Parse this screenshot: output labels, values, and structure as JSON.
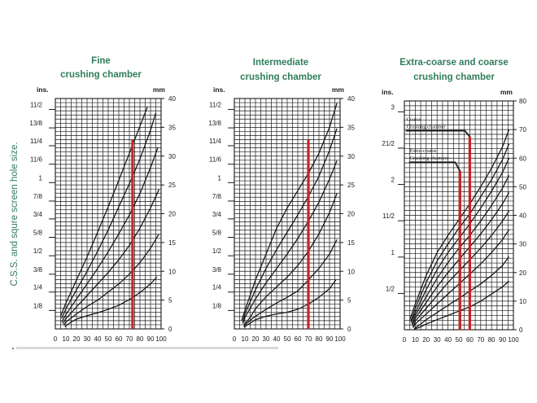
{
  "colors": {
    "heading": "#2f7d5c",
    "side_label": "#2f7d5c",
    "ink": "#1a1a1a",
    "marker": "#cc2222"
  },
  "side_label": "C.S.S. and squre screen hole size.",
  "chart_data": [
    {
      "type": "line",
      "title_lines": [
        "Fine",
        "crushing chamber"
      ],
      "left_unit": "ins.",
      "right_unit": "mm",
      "left_ticks": [
        "1/8",
        "1/4",
        "3/8",
        "1/2",
        "5/8",
        "3/4",
        "7/8",
        "1",
        "11/6",
        "11/4",
        "13/8",
        "11/2"
      ],
      "left_tick_mm": [
        3.2,
        6.4,
        9.5,
        12.7,
        15.9,
        19.1,
        22.2,
        25.4,
        28.6,
        31.8,
        34.9,
        38.1
      ],
      "ylim": [
        0,
        40
      ],
      "right_ticks": [
        0,
        5,
        10,
        15,
        20,
        25,
        30,
        35,
        40
      ],
      "xlim": [
        0,
        100
      ],
      "x_ticks": [
        0,
        10,
        20,
        30,
        40,
        50,
        60,
        70,
        80,
        90,
        100
      ],
      "curves": [
        [
          [
            5,
            2.2
          ],
          [
            10,
            4.5
          ],
          [
            20,
            8.5
          ],
          [
            30,
            12.5
          ],
          [
            40,
            16.8
          ],
          [
            50,
            21.2
          ],
          [
            60,
            25.8
          ],
          [
            70,
            30.5
          ],
          [
            80,
            35.2
          ],
          [
            87,
            38.5
          ]
        ],
        [
          [
            6,
            1.8
          ],
          [
            10,
            3.5
          ],
          [
            20,
            6.8
          ],
          [
            30,
            10.0
          ],
          [
            40,
            13.5
          ],
          [
            50,
            17.2
          ],
          [
            60,
            21.2
          ],
          [
            70,
            25.2
          ],
          [
            80,
            29.5
          ],
          [
            90,
            34.5
          ],
          [
            95,
            37.5
          ]
        ],
        [
          [
            6,
            1.2
          ],
          [
            10,
            2.5
          ],
          [
            20,
            5.2
          ],
          [
            30,
            7.8
          ],
          [
            40,
            10.5
          ],
          [
            50,
            13.4
          ],
          [
            60,
            16.5
          ],
          [
            70,
            19.8
          ],
          [
            80,
            23.5
          ],
          [
            90,
            28.0
          ],
          [
            97,
            31.5
          ]
        ],
        [
          [
            7,
            0.9
          ],
          [
            10,
            1.8
          ],
          [
            20,
            3.8
          ],
          [
            30,
            5.8
          ],
          [
            40,
            7.8
          ],
          [
            50,
            9.8
          ],
          [
            60,
            12.0
          ],
          [
            70,
            14.5
          ],
          [
            80,
            17.5
          ],
          [
            90,
            21.0
          ],
          [
            98,
            24.2
          ]
        ],
        [
          [
            8,
            0.6
          ],
          [
            10,
            1.2
          ],
          [
            20,
            2.6
          ],
          [
            30,
            3.9
          ],
          [
            40,
            5.0
          ],
          [
            50,
            6.4
          ],
          [
            60,
            7.8
          ],
          [
            70,
            9.5
          ],
          [
            80,
            11.5
          ],
          [
            90,
            14.0
          ],
          [
            98,
            16.5
          ]
        ],
        [
          [
            9,
            0.4
          ],
          [
            15,
            1.2
          ],
          [
            20,
            1.7
          ],
          [
            30,
            2.3
          ],
          [
            40,
            2.8
          ],
          [
            50,
            3.4
          ],
          [
            60,
            4.1
          ],
          [
            70,
            5.1
          ],
          [
            80,
            6.3
          ],
          [
            90,
            7.8
          ],
          [
            96,
            9.0
          ]
        ]
      ],
      "markers": [
        {
          "x": 73,
          "y0": 0,
          "y1": 32.8
        }
      ],
      "annotations": []
    },
    {
      "type": "line",
      "title_lines": [
        "Intermediate",
        "crushing chamber"
      ],
      "left_unit": "ins.",
      "right_unit": "mm",
      "left_ticks": [
        "1/8",
        "1/4",
        "3/8",
        "1/2",
        "5/8",
        "3/4",
        "7/8",
        "1",
        "11/6",
        "11/4",
        "13/8",
        "11/2"
      ],
      "left_tick_mm": [
        3.2,
        6.4,
        9.5,
        12.7,
        15.9,
        19.1,
        22.2,
        25.4,
        28.6,
        31.8,
        34.9,
        38.1
      ],
      "ylim": [
        0,
        40
      ],
      "right_ticks": [
        0,
        5,
        10,
        15,
        20,
        25,
        30,
        35,
        40
      ],
      "xlim": [
        0,
        100
      ],
      "x_ticks": [
        0,
        10,
        20,
        30,
        40,
        50,
        60,
        70,
        80,
        90,
        100
      ],
      "curves": [
        [
          [
            7,
            1.5
          ],
          [
            10,
            3.2
          ],
          [
            20,
            8.5
          ],
          [
            30,
            13.0
          ],
          [
            40,
            17.5
          ],
          [
            50,
            21.0
          ],
          [
            60,
            24.0
          ],
          [
            70,
            27.0
          ],
          [
            80,
            30.5
          ],
          [
            90,
            35.0
          ],
          [
            97,
            39.2
          ]
        ],
        [
          [
            8,
            1.2
          ],
          [
            10,
            2.6
          ],
          [
            20,
            6.8
          ],
          [
            30,
            10.5
          ],
          [
            40,
            13.8
          ],
          [
            50,
            16.8
          ],
          [
            60,
            19.8
          ],
          [
            70,
            23.0
          ],
          [
            80,
            26.5
          ],
          [
            90,
            31.0
          ],
          [
            97,
            34.8
          ]
        ],
        [
          [
            8,
            0.9
          ],
          [
            10,
            2.0
          ],
          [
            20,
            5.2
          ],
          [
            30,
            8.0
          ],
          [
            40,
            10.5
          ],
          [
            50,
            13.0
          ],
          [
            60,
            15.7
          ],
          [
            70,
            18.7
          ],
          [
            80,
            22.0
          ],
          [
            90,
            26.0
          ],
          [
            97,
            29.2
          ]
        ],
        [
          [
            9,
            0.7
          ],
          [
            15,
            2.0
          ],
          [
            20,
            3.5
          ],
          [
            30,
            5.6
          ],
          [
            40,
            7.3
          ],
          [
            50,
            9.0
          ],
          [
            60,
            11.0
          ],
          [
            70,
            13.5
          ],
          [
            80,
            16.5
          ],
          [
            90,
            20.2
          ],
          [
            97,
            23.5
          ]
        ],
        [
          [
            9,
            0.5
          ],
          [
            15,
            1.5
          ],
          [
            20,
            2.2
          ],
          [
            30,
            3.4
          ],
          [
            40,
            4.5
          ],
          [
            50,
            5.5
          ],
          [
            60,
            6.6
          ],
          [
            70,
            8.5
          ],
          [
            80,
            10.5
          ],
          [
            90,
            13.0
          ],
          [
            97,
            15.5
          ]
        ],
        [
          [
            9,
            0.3
          ],
          [
            15,
            1.0
          ],
          [
            20,
            1.6
          ],
          [
            30,
            2.2
          ],
          [
            40,
            2.6
          ],
          [
            50,
            2.9
          ],
          [
            60,
            3.4
          ],
          [
            70,
            4.3
          ],
          [
            80,
            5.5
          ],
          [
            90,
            7.0
          ],
          [
            96,
            8.5
          ]
        ]
      ],
      "markers": [
        {
          "x": 70,
          "y0": 0,
          "y1": 32.8
        }
      ],
      "annotations": []
    },
    {
      "type": "line",
      "title_lines": [
        "Extra-coarse and coarse",
        "crushing chamber"
      ],
      "left_unit": "ins.",
      "right_unit": "mm",
      "left_ticks": [
        "1/2",
        "1",
        "11/2",
        "2",
        "21/2",
        "3"
      ],
      "left_tick_mm": [
        12.7,
        25.4,
        38.1,
        50.8,
        63.5,
        76.2
      ],
      "ylim": [
        0,
        80
      ],
      "right_ticks": [
        0,
        10,
        20,
        30,
        40,
        50,
        60,
        70,
        80
      ],
      "xlim": [
        0,
        100
      ],
      "x_ticks": [
        0,
        10,
        20,
        30,
        40,
        50,
        60,
        70,
        80,
        90,
        100
      ],
      "curves": [
        [
          [
            5,
            3.5
          ],
          [
            10,
            9.0
          ],
          [
            20,
            19.0
          ],
          [
            30,
            27.0
          ],
          [
            40,
            33.0
          ],
          [
            50,
            38.5
          ],
          [
            60,
            44.0
          ],
          [
            70,
            50.0
          ],
          [
            80,
            56.5
          ],
          [
            90,
            64.0
          ],
          [
            96,
            70.0
          ]
        ],
        [
          [
            6,
            3.0
          ],
          [
            10,
            7.5
          ],
          [
            20,
            16.5
          ],
          [
            30,
            24.0
          ],
          [
            40,
            30.0
          ],
          [
            50,
            35.5
          ],
          [
            60,
            40.5
          ],
          [
            70,
            46.5
          ],
          [
            80,
            52.5
          ],
          [
            90,
            59.5
          ],
          [
            96,
            65.0
          ]
        ],
        [
          [
            6,
            2.5
          ],
          [
            10,
            6.0
          ],
          [
            20,
            14.0
          ],
          [
            30,
            21.0
          ],
          [
            40,
            27.0
          ],
          [
            50,
            32.0
          ],
          [
            60,
            37.0
          ],
          [
            70,
            42.5
          ],
          [
            80,
            48.5
          ],
          [
            90,
            55.0
          ],
          [
            96,
            60.0
          ]
        ],
        [
          [
            7,
            2.0
          ],
          [
            10,
            5.0
          ],
          [
            20,
            11.5
          ],
          [
            30,
            18.0
          ],
          [
            40,
            23.5
          ],
          [
            50,
            28.5
          ],
          [
            60,
            33.0
          ],
          [
            70,
            38.0
          ],
          [
            80,
            43.5
          ],
          [
            90,
            49.5
          ],
          [
            96,
            54.0
          ]
        ],
        [
          [
            7,
            1.5
          ],
          [
            10,
            4.0
          ],
          [
            20,
            9.5
          ],
          [
            30,
            15.0
          ],
          [
            40,
            20.0
          ],
          [
            50,
            24.5
          ],
          [
            60,
            29.0
          ],
          [
            70,
            33.5
          ],
          [
            80,
            38.5
          ],
          [
            90,
            44.0
          ],
          [
            96,
            48.0
          ]
        ],
        [
          [
            8,
            1.0
          ],
          [
            10,
            3.0
          ],
          [
            20,
            7.5
          ],
          [
            30,
            12.0
          ],
          [
            40,
            16.5
          ],
          [
            50,
            20.5
          ],
          [
            60,
            24.5
          ],
          [
            70,
            28.5
          ],
          [
            80,
            33.0
          ],
          [
            90,
            38.0
          ],
          [
            96,
            41.5
          ]
        ],
        [
          [
            8,
            0.7
          ],
          [
            10,
            2.0
          ],
          [
            20,
            5.5
          ],
          [
            30,
            9.0
          ],
          [
            40,
            12.5
          ],
          [
            50,
            16.0
          ],
          [
            60,
            19.5
          ],
          [
            70,
            23.0
          ],
          [
            80,
            27.0
          ],
          [
            90,
            31.5
          ],
          [
            96,
            35.0
          ]
        ],
        [
          [
            9,
            0.4
          ],
          [
            15,
            2.0
          ],
          [
            20,
            3.5
          ],
          [
            30,
            6.0
          ],
          [
            40,
            8.5
          ],
          [
            50,
            11.0
          ],
          [
            60,
            13.5
          ],
          [
            70,
            16.0
          ],
          [
            80,
            19.0
          ],
          [
            90,
            22.5
          ],
          [
            96,
            25.5
          ]
        ],
        [
          [
            9,
            0.2
          ],
          [
            15,
            1.0
          ],
          [
            20,
            2.0
          ],
          [
            30,
            3.5
          ],
          [
            40,
            5.0
          ],
          [
            50,
            6.5
          ],
          [
            60,
            8.0
          ],
          [
            70,
            10.0
          ],
          [
            80,
            12.5
          ],
          [
            90,
            15.0
          ],
          [
            96,
            17.0
          ]
        ]
      ],
      "markers": [
        {
          "x": 51,
          "y0": 0,
          "y1": 55.5
        },
        {
          "x": 60,
          "y0": 0,
          "y1": 67.5
        }
      ],
      "annotations": [
        {
          "lines": [
            "Coarse",
            "Crushing chamber"
          ],
          "x": 2,
          "y": 73,
          "to_x": 60,
          "to_y": 67.5
        },
        {
          "lines": [
            "Extra-coarse",
            "Crushing chamber"
          ],
          "x": 5,
          "y": 62,
          "to_x": 51,
          "to_y": 55.5
        }
      ]
    }
  ]
}
